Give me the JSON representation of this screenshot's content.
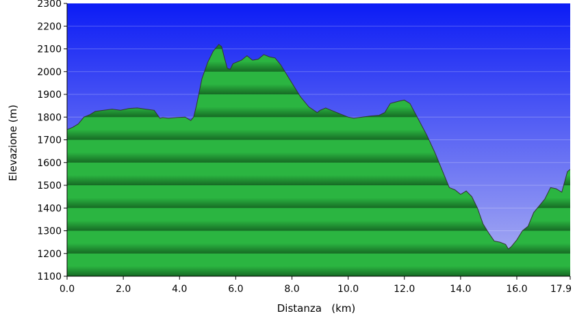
{
  "chart_data": {
    "type": "area",
    "title": "",
    "xlabel": "Distanza   (km)",
    "ylabel": "Elevazione (m)",
    "xlim": [
      0,
      17.9
    ],
    "ylim": [
      1100,
      2300
    ],
    "x_ticks": [
      0,
      2,
      4,
      6,
      8,
      10,
      12,
      14,
      16,
      17.9
    ],
    "x_tick_labels": [
      "0.0",
      "2.0",
      "4.0",
      "6.0",
      "8.0",
      "10.0",
      "12.0",
      "14.0",
      "16.0",
      "17.9"
    ],
    "y_ticks": [
      1100,
      1200,
      1300,
      1400,
      1500,
      1600,
      1700,
      1800,
      1900,
      2000,
      2100,
      2200,
      2300
    ],
    "y_tick_labels": [
      "1100",
      "1200",
      "1300",
      "1400",
      "1500",
      "1600",
      "1700",
      "1800",
      "1900",
      "2000",
      "2100",
      "2200",
      "2300"
    ],
    "grid": true,
    "legend": "none",
    "colors": {
      "sky_top": "#0c1cf5",
      "sky_bottom": "#b0b4f2",
      "fill_top": "#2bb541",
      "fill_dark": "#166a24",
      "line": "#333333"
    },
    "series": [
      {
        "x": [
          0.0,
          0.2,
          0.4,
          0.6,
          0.8,
          1.0,
          1.3,
          1.6,
          1.9,
          2.2,
          2.5,
          2.8,
          3.1,
          3.3,
          3.4,
          3.6,
          3.9,
          4.2,
          4.4,
          4.5,
          4.6,
          4.7,
          4.8,
          5.0,
          5.2,
          5.4,
          5.5,
          5.6,
          5.7,
          5.8,
          5.9,
          6.0,
          6.2,
          6.4,
          6.6,
          6.8,
          7.0,
          7.2,
          7.4,
          7.6,
          7.8,
          8.0,
          8.3,
          8.6,
          8.9,
          9.0,
          9.2,
          9.4,
          9.7,
          10.0,
          10.2,
          10.5,
          10.8,
          11.1,
          11.3,
          11.5,
          11.8,
          12.0,
          12.2,
          12.5,
          12.8,
          13.1,
          13.4,
          13.6,
          13.8,
          14.0,
          14.2,
          14.4,
          14.6,
          14.8,
          15.0,
          15.2,
          15.4,
          15.6,
          15.7,
          15.8,
          16.0,
          16.2,
          16.4,
          16.6,
          16.8,
          17.0,
          17.2,
          17.4,
          17.6,
          17.8,
          17.9
        ],
        "y": [
          1745,
          1755,
          1770,
          1800,
          1810,
          1825,
          1830,
          1835,
          1830,
          1838,
          1840,
          1835,
          1830,
          1795,
          1798,
          1795,
          1798,
          1800,
          1785,
          1800,
          1850,
          1910,
          1970,
          2040,
          2090,
          2120,
          2110,
          2060,
          2015,
          2010,
          2035,
          2040,
          2050,
          2070,
          2050,
          2055,
          2075,
          2065,
          2060,
          2030,
          1990,
          1950,
          1890,
          1845,
          1820,
          1830,
          1840,
          1830,
          1815,
          1800,
          1795,
          1800,
          1805,
          1808,
          1820,
          1860,
          1870,
          1875,
          1860,
          1790,
          1720,
          1640,
          1550,
          1490,
          1480,
          1460,
          1475,
          1450,
          1400,
          1330,
          1290,
          1255,
          1250,
          1240,
          1220,
          1230,
          1260,
          1300,
          1320,
          1380,
          1410,
          1440,
          1490,
          1485,
          1470,
          1560,
          1570
        ]
      }
    ]
  }
}
